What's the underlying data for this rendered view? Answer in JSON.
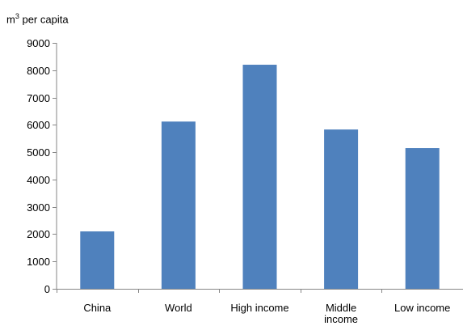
{
  "chart_data": {
    "type": "bar",
    "ylabel_base": "m",
    "ylabel_sup": "3",
    "ylabel_rest": " per capita",
    "categories": [
      [
        "China"
      ],
      [
        "World"
      ],
      [
        "High income"
      ],
      [
        "Middle",
        "income"
      ],
      [
        "Low income"
      ]
    ],
    "values": [
      2100,
      6120,
      8200,
      5830,
      5150
    ],
    "ylim": [
      0,
      9000
    ],
    "yticks": [
      0,
      1000,
      2000,
      3000,
      4000,
      5000,
      6000,
      7000,
      8000,
      9000
    ],
    "bar_color": "#4f81bd",
    "grid": false,
    "legend": "none"
  }
}
